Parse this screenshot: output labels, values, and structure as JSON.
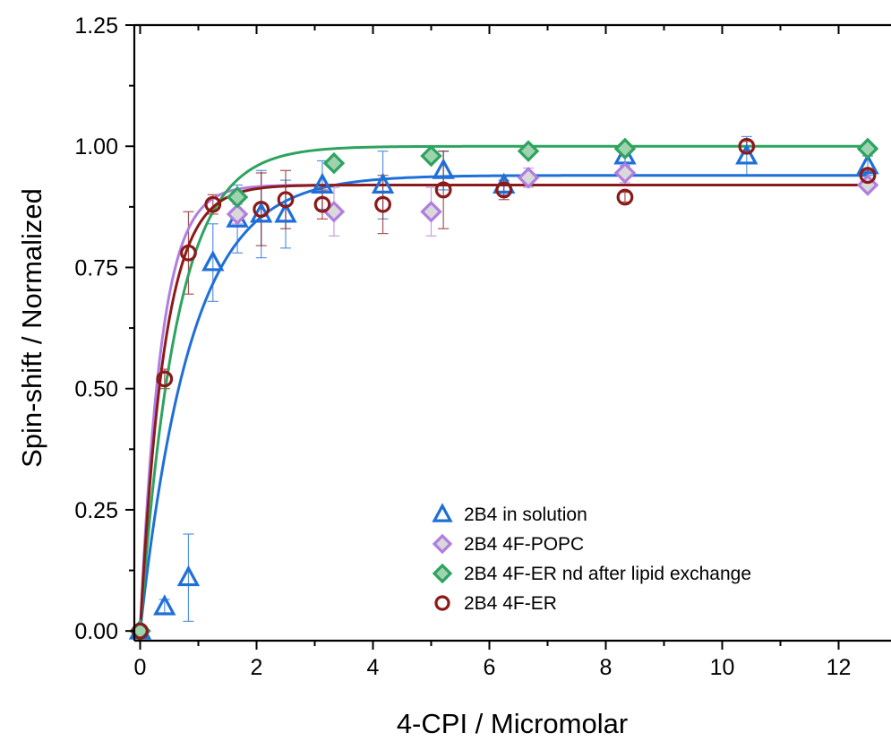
{
  "chart_data": {
    "type": "scatter",
    "title": "",
    "xlabel": "4-CPI / Micromolar",
    "ylabel": "Spin-shift / Normalized",
    "xlim": [
      -0.1,
      12.9
    ],
    "ylim": [
      -0.02,
      1.25
    ],
    "xticks": [
      0,
      2,
      4,
      6,
      8,
      10,
      12
    ],
    "xtick_labels": [
      "0",
      "2",
      "4",
      "6",
      "8",
      "10",
      "12"
    ],
    "yticks": [
      0.0,
      0.25,
      0.5,
      0.75,
      1.0,
      1.25
    ],
    "ytick_labels": [
      "0.00",
      "0.25",
      "0.50",
      "0.75",
      "1.00",
      "1.25"
    ],
    "grid": false,
    "legend_position": "bottom-right",
    "series": [
      {
        "name": "2B4 in solution",
        "marker": "triangle",
        "color": "#1f6fd8",
        "x": [
          0.0,
          0.42,
          0.83,
          1.25,
          1.67,
          2.08,
          2.5,
          3.13,
          4.17,
          5.21,
          6.25,
          8.33,
          10.42,
          12.5
        ],
        "y": [
          0.0,
          0.05,
          0.11,
          0.76,
          0.85,
          0.86,
          0.86,
          0.92,
          0.92,
          0.95,
          0.92,
          0.98,
          0.98,
          0.96
        ],
        "error": [
          0.0,
          0.015,
          0.09,
          0.08,
          0.07,
          0.09,
          0.07,
          0.05,
          0.07,
          0.04,
          0.02,
          0.02,
          0.04,
          0.02
        ],
        "fit": {
          "ymax": 0.94,
          "k": 1.15
        }
      },
      {
        "name": "2B4 4F-POPC",
        "marker": "diamond",
        "color": "#b07ee0",
        "fill": "#d9d9d9",
        "x": [
          0.0,
          1.67,
          3.33,
          5.0,
          6.67,
          8.33,
          12.5
        ],
        "y": [
          0.0,
          0.86,
          0.865,
          0.865,
          0.935,
          0.945,
          0.92
        ],
        "error": [
          0.0,
          0.02,
          0.05,
          0.05,
          0.02,
          0.02,
          0.01
        ],
        "fit": {
          "ymax": 0.92,
          "k": 2.8
        }
      },
      {
        "name": "2B4 4F-ER nd after lipid exchange",
        "marker": "diamond",
        "color": "#2ea35f",
        "fill": "#9fd3b0",
        "x": [
          0.0,
          1.67,
          3.33,
          5.0,
          6.67,
          8.33,
          12.5
        ],
        "y": [
          0.0,
          0.895,
          0.965,
          0.98,
          0.99,
          0.995,
          0.995
        ],
        "error": [
          0.0,
          0.01,
          0.01,
          0.01,
          0.01,
          0.01,
          0.01
        ],
        "fit": {
          "ymax": 1.0,
          "k": 1.6
        }
      },
      {
        "name": "2B4 4F-ER",
        "marker": "circle",
        "color": "#8b1a1a",
        "x": [
          0.0,
          0.42,
          0.83,
          1.25,
          2.08,
          2.5,
          3.13,
          4.17,
          5.21,
          6.25,
          8.33,
          10.42,
          12.5
        ],
        "y": [
          0.0,
          0.52,
          0.78,
          0.88,
          0.87,
          0.89,
          0.88,
          0.88,
          0.91,
          0.91,
          0.895,
          1.0,
          0.94
        ],
        "error": [
          0.0,
          0.02,
          0.085,
          0.02,
          0.075,
          0.06,
          0.03,
          0.06,
          0.08,
          0.02,
          0.01,
          0.01,
          0.01
        ],
        "fit": {
          "ymax": 0.92,
          "k": 2.4
        }
      }
    ]
  }
}
